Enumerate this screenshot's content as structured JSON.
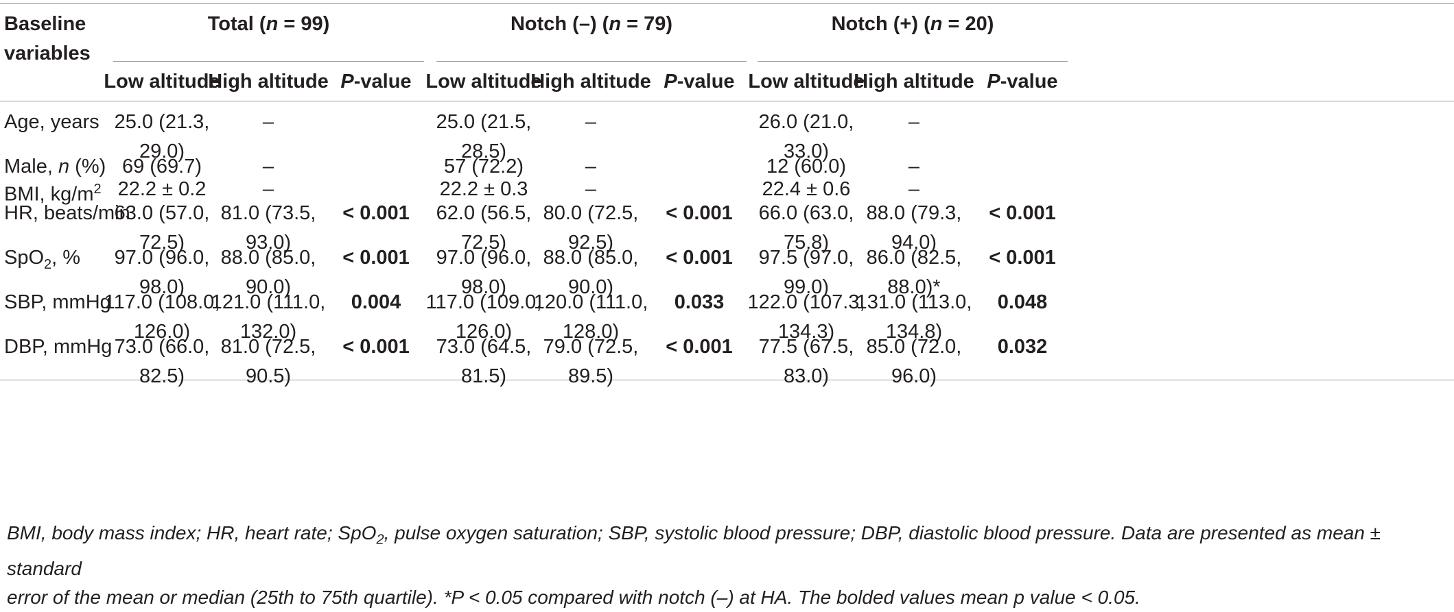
{
  "header": {
    "baseline_line1": "Baseline",
    "baseline_line2": "variables",
    "groups": [
      {
        "pre": "Total (",
        "n": "n",
        "post": " = 99)"
      },
      {
        "pre": "Notch (–) (",
        "n": "n",
        "post": " = 79)"
      },
      {
        "pre": "Notch (+) (",
        "n": "n",
        "post": " = 20)"
      }
    ],
    "low": "Low altitude",
    "high": "High altitude",
    "p_italic": "P",
    "p_rest": "-value"
  },
  "rows": [
    {
      "label": "Age, years",
      "cells": [
        [
          "25.0 (21.3,",
          "29.0)"
        ],
        [
          "–"
        ],
        [
          ""
        ],
        [
          "25.0 (21.5,",
          "28.5)"
        ],
        [
          "–"
        ],
        [
          ""
        ],
        [
          "26.0 (21.0,",
          "33.0)"
        ],
        [
          "–"
        ],
        [
          ""
        ]
      ]
    },
    {
      "label_pre": "Male, ",
      "label_it": "n",
      "label_post": " (%)",
      "cells": [
        [
          "69 (69.7)"
        ],
        [
          "–"
        ],
        [
          ""
        ],
        [
          "57 (72.2)"
        ],
        [
          "–"
        ],
        [
          ""
        ],
        [
          "12 (60.0)"
        ],
        [
          "–"
        ],
        [
          ""
        ]
      ]
    },
    {
      "label_pre": "BMI, kg/m",
      "label_sup": "2",
      "cells": [
        [
          "22.2 ± 0.2"
        ],
        [
          "–"
        ],
        [
          ""
        ],
        [
          "22.2 ± 0.3"
        ],
        [
          "–"
        ],
        [
          ""
        ],
        [
          "22.4 ± 0.6"
        ],
        [
          "–"
        ],
        [
          ""
        ]
      ]
    },
    {
      "label": "HR, beats/min",
      "cells": [
        [
          "63.0 (57.0,",
          "72.5)"
        ],
        [
          "81.0 (73.5,",
          "93.0)"
        ],
        [
          "< 0.001"
        ],
        [
          "62.0 (56.5,",
          "72.5)"
        ],
        [
          "80.0 (72.5,",
          "92.5)"
        ],
        [
          "< 0.001"
        ],
        [
          "66.0 (63.0,",
          "75.8)"
        ],
        [
          "88.0 (79.3,",
          "94.0)"
        ],
        [
          "< 0.001"
        ]
      ]
    },
    {
      "label_pre": "SpO",
      "label_sub": "2",
      "label_post": ", %",
      "cells": [
        [
          "97.0 (96.0,",
          "98.0)"
        ],
        [
          "88.0 (85.0,",
          "90.0)"
        ],
        [
          "< 0.001"
        ],
        [
          "97.0 (96.0,",
          "98.0)"
        ],
        [
          "88.0 (85.0,",
          "90.0)"
        ],
        [
          "< 0.001"
        ],
        [
          "97.5 (97.0,",
          "99.0)"
        ],
        [
          "86.0 (82.5,",
          "88.0)*"
        ],
        [
          "< 0.001"
        ]
      ]
    },
    {
      "label": "SBP, mmHg",
      "cells": [
        [
          "117.0 (108.0,",
          "126.0)"
        ],
        [
          "121.0 (111.0,",
          "132.0)"
        ],
        [
          "0.004"
        ],
        [
          "117.0 (109.0,",
          "126.0)"
        ],
        [
          "120.0 (111.0,",
          "128.0)"
        ],
        [
          "0.033"
        ],
        [
          "122.0 (107.3,",
          "134.3)"
        ],
        [
          "131.0 (113.0,",
          "134.8)"
        ],
        [
          "0.048"
        ]
      ]
    },
    {
      "label": "DBP, mmHg",
      "cells": [
        [
          "73.0 (66.0,",
          "82.5)"
        ],
        [
          "81.0 (72.5,",
          "90.5)"
        ],
        [
          "< 0.001"
        ],
        [
          "73.0 (64.5,",
          "81.5)"
        ],
        [
          "79.0 (72.5,",
          "89.5)"
        ],
        [
          "< 0.001"
        ],
        [
          "77.5 (67.5,",
          "83.0)"
        ],
        [
          "85.0 (72.0,",
          "96.0)"
        ],
        [
          "0.032"
        ]
      ]
    }
  ],
  "footnote": {
    "part1": "BMI, body mass index; HR, heart rate; SpO",
    "sub": "2",
    "part2": ", pulse oxygen saturation; SBP, systolic blood pressure; DBP, diastolic blood pressure. Data are presented as mean ± standard",
    "part3": "error of the mean or median (25th to 75th quartile). *P < 0.05 compared with notch (–) at HA. The bolded values mean p value < 0.05."
  }
}
